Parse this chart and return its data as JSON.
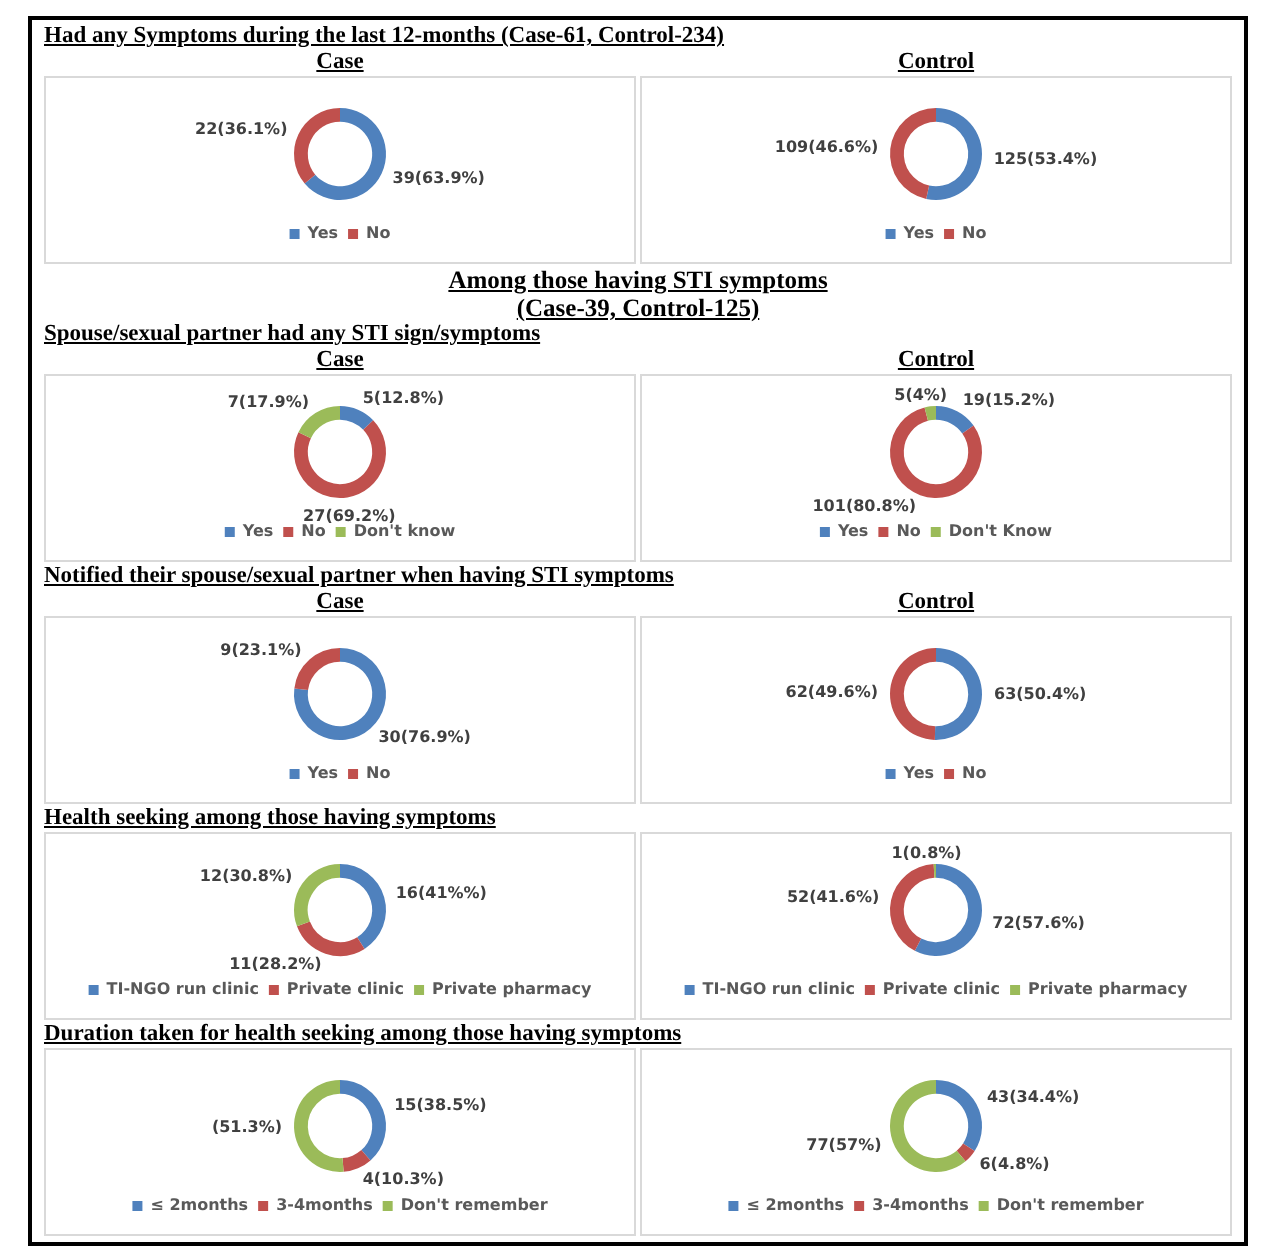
{
  "chart_data": [
    {
      "type": "donut",
      "title": "Had any Symptoms during the last 12-months (Case-61, Control-234)",
      "subtitle": "Case",
      "categories": [
        "Yes",
        "No"
      ],
      "values": [
        39,
        22
      ],
      "colors": [
        "#4f81bd",
        "#c0504d"
      ],
      "value_labels": [
        "39(63.9%)",
        "22(36.1%)"
      ],
      "legend": "bottom"
    },
    {
      "type": "donut",
      "subtitle": "Control",
      "categories": [
        "Yes",
        "No"
      ],
      "values": [
        125,
        109
      ],
      "colors": [
        "#4f81bd",
        "#c0504d"
      ],
      "value_labels": [
        "125(53.4%)",
        "109(46.6%)"
      ],
      "legend": "bottom"
    },
    {
      "type": "donut",
      "annotations": [
        "Among those having STI symptoms",
        "(Case-39, Control-125)"
      ],
      "title": "Spouse/sexual partner had any STI sign/symptoms",
      "subtitle": "Case",
      "categories": [
        "Yes",
        "No",
        "Don't know"
      ],
      "values": [
        5,
        27,
        7
      ],
      "colors": [
        "#4f81bd",
        "#c0504d",
        "#9bbb59"
      ],
      "value_labels": [
        "5(12.8%)",
        "27(69.2%)",
        "7(17.9%)"
      ],
      "legend": "bottom"
    },
    {
      "type": "donut",
      "subtitle": "Control",
      "categories": [
        "Yes",
        "No",
        "Don't Know"
      ],
      "values": [
        19,
        101,
        5
      ],
      "colors": [
        "#4f81bd",
        "#c0504d",
        "#9bbb59"
      ],
      "value_labels": [
        "19(15.2%)",
        "101(80.8%)",
        "5(4%)"
      ],
      "legend": "bottom"
    },
    {
      "type": "donut",
      "title": "Notified their spouse/sexual partner when having STI symptoms",
      "subtitle": "Case",
      "categories": [
        "Yes",
        "No"
      ],
      "values": [
        30,
        9
      ],
      "colors": [
        "#4f81bd",
        "#c0504d"
      ],
      "value_labels": [
        "30(76.9%)",
        "9(23.1%)"
      ],
      "legend": "bottom"
    },
    {
      "type": "donut",
      "subtitle": "Control",
      "categories": [
        "Yes",
        "No"
      ],
      "values": [
        63,
        62
      ],
      "colors": [
        "#4f81bd",
        "#c0504d"
      ],
      "value_labels": [
        "63(50.4%)",
        "62(49.6%)"
      ],
      "legend": "bottom"
    },
    {
      "type": "donut",
      "title": "Health seeking among those having symptoms",
      "categories": [
        "TI-NGO run clinic",
        "Private clinic",
        "Private pharmacy"
      ],
      "values": [
        16,
        11,
        12
      ],
      "colors": [
        "#4f81bd",
        "#c0504d",
        "#9bbb59"
      ],
      "value_labels": [
        "16(41%%)",
        "11(28.2%)",
        "12(30.8%)"
      ],
      "legend": "bottom"
    },
    {
      "type": "donut",
      "categories": [
        "TI-NGO run clinic",
        "Private clinic",
        "Private pharmacy"
      ],
      "values": [
        72,
        52,
        1
      ],
      "colors": [
        "#4f81bd",
        "#c0504d",
        "#9bbb59"
      ],
      "value_labels": [
        "72(57.6%)",
        "52(41.6%)",
        "1(0.8%)"
      ],
      "legend": "bottom"
    },
    {
      "type": "donut",
      "title": "Duration taken for health seeking among those having symptoms",
      "categories": [
        "≤ 2months",
        "3-4months",
        "Don't remember"
      ],
      "values": [
        38.5,
        10.3,
        51.3
      ],
      "colors": [
        "#4f81bd",
        "#c0504d",
        "#9bbb59"
      ],
      "value_labels": [
        "15(38.5%)",
        "4(10.3%)",
        "(51.3%)"
      ],
      "legend": "bottom"
    },
    {
      "type": "donut",
      "categories": [
        "≤ 2months",
        "3-4months",
        "Don't remember"
      ],
      "values": [
        43,
        6,
        77
      ],
      "colors": [
        "#4f81bd",
        "#c0504d",
        "#9bbb59"
      ],
      "value_labels": [
        "43(34.4%)",
        "6(4.8%)",
        "77(57%)"
      ],
      "legend": "bottom"
    }
  ]
}
